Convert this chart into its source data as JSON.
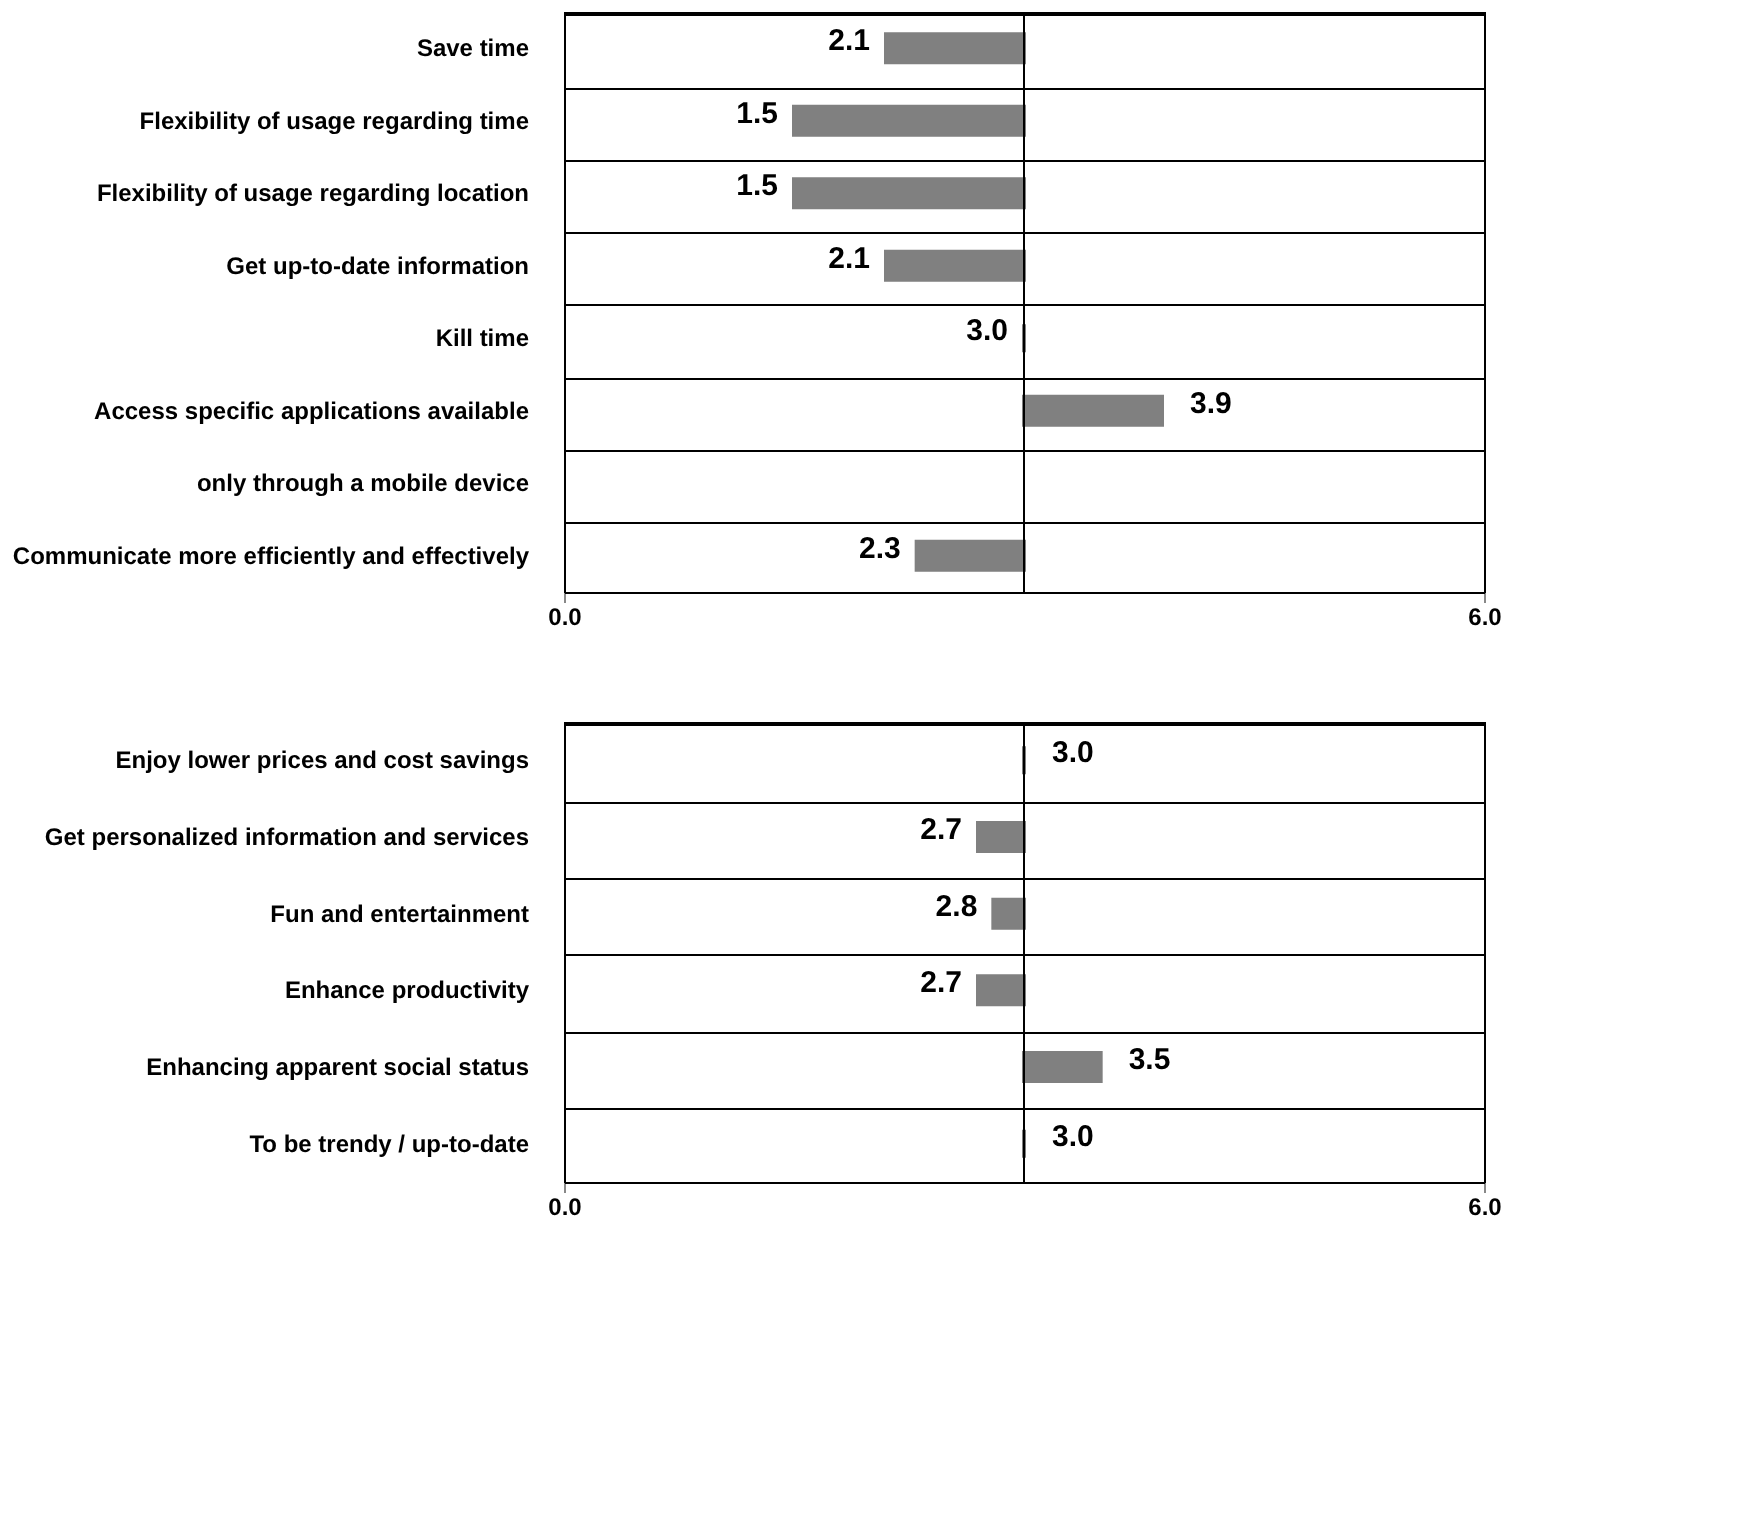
{
  "chart_data": [
    {
      "type": "bar",
      "orientation": "horizontal",
      "categories": [
        "Save time",
        "Flexibility of usage regarding time",
        "Flexibility of usage regarding location",
        "Get up-to-date information",
        "Kill time",
        "Access specific applications available",
        "only through a mobile device",
        "Communicate more efficiently and effectively"
      ],
      "values": [
        -0.9,
        -1.5,
        -1.5,
        -0.9,
        0.0,
        0.9,
        null,
        -0.7
      ],
      "base": [
        3.0,
        3.0,
        3.0,
        3.0,
        3.0,
        3.0,
        null,
        3.0
      ],
      "value_labels": [
        "2.1",
        "1.5",
        "1.5",
        "2.1",
        "3.0",
        "3.9",
        null,
        "2.3"
      ],
      "color": "#808080",
      "xlim": [
        0,
        6
      ],
      "xticks": [
        {
          "value": 0,
          "label": "0.0"
        },
        {
          "value": 6,
          "label": "6.0"
        }
      ],
      "ref_lines": [
        {
          "axis": "x",
          "value": 3.0
        }
      ],
      "grid": "y"
    },
    {
      "type": "bar",
      "orientation": "horizontal",
      "categories": [
        "Enjoy lower prices and cost savings",
        "Get personalized information and services",
        "Fun and entertainment",
        "Enhance productivity",
        "Enhancing apparent social status",
        "To be trendy / up-to-date"
      ],
      "values": [
        0.0,
        -0.3,
        -0.2,
        -0.3,
        0.5,
        0.0
      ],
      "base": [
        3.0,
        3.0,
        3.0,
        3.0,
        3.0,
        3.0
      ],
      "value_labels": [
        "3.0",
        "2.7",
        "2.8",
        "2.7",
        "3.5",
        "3.0"
      ],
      "color": "#808080",
      "xlim": [
        0,
        6
      ],
      "xticks": [
        {
          "value": 0,
          "label": "0.0"
        },
        {
          "value": 6,
          "label": "6.0"
        }
      ],
      "ref_lines": [
        {
          "axis": "x",
          "value": 3.0
        }
      ],
      "grid": "y"
    }
  ]
}
